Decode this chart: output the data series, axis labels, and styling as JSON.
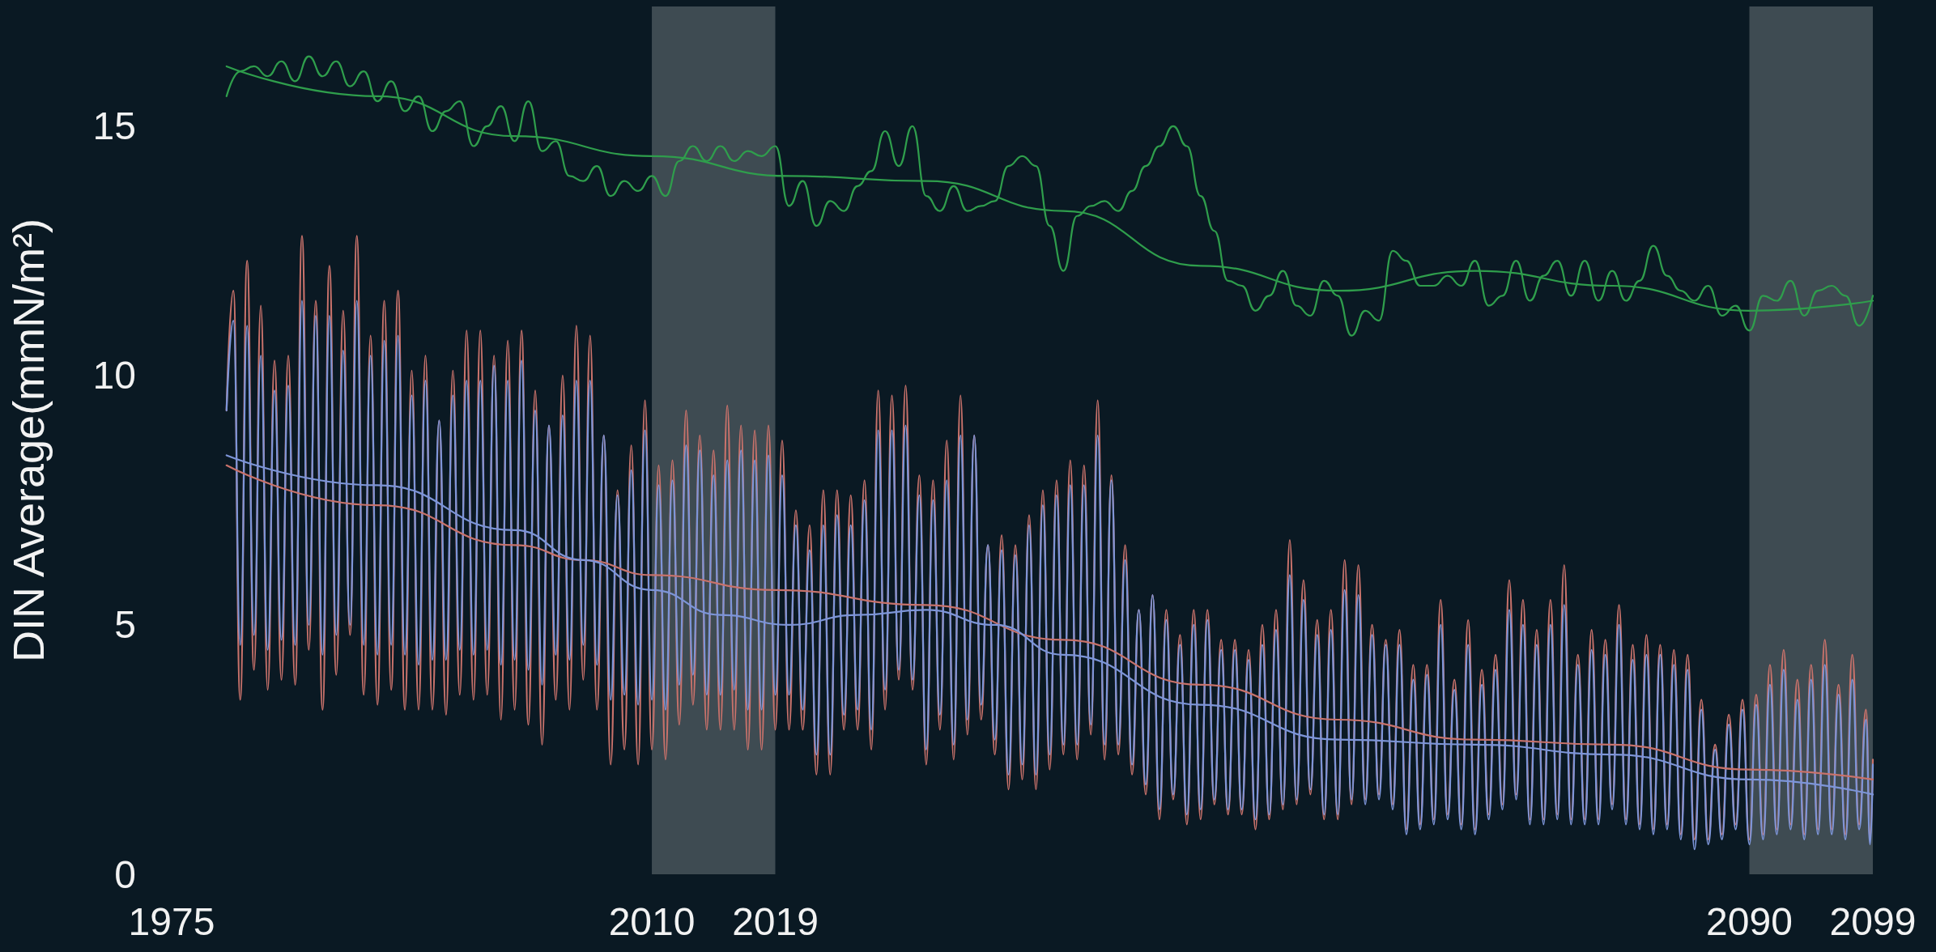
{
  "chart_data": {
    "type": "line",
    "ylabel": "DIN Average(mmN/m²)",
    "xlim": [
      1975,
      2099
    ],
    "xticks": [
      1975,
      2010,
      2019,
      2090,
      2099
    ],
    "ylim": [
      0,
      17.4
    ],
    "yticks": [
      0,
      5,
      10,
      15
    ],
    "marker": "none",
    "bands": [
      {
        "axis": "x",
        "from": 2010,
        "to": 2019,
        "color": "#3e4b52"
      },
      {
        "axis": "x",
        "from": 2090,
        "to": 2099,
        "color": "#3e4b52"
      }
    ],
    "x": [
      1979,
      1979.5,
      1980,
      1980.5,
      1981,
      1981.5,
      1982,
      1982.5,
      1983,
      1983.5,
      1984,
      1984.5,
      1985,
      1985.5,
      1986,
      1986.5,
      1987,
      1987.5,
      1988,
      1988.5,
      1989,
      1989.5,
      1990,
      1990.5,
      1991,
      1991.5,
      1992,
      1992.5,
      1993,
      1993.5,
      1994,
      1994.5,
      1995,
      1995.5,
      1996,
      1996.5,
      1997,
      1997.5,
      1998,
      1998.5,
      1999,
      1999.5,
      2000,
      2000.5,
      2001,
      2001.5,
      2002,
      2002.5,
      2003,
      2003.5,
      2004,
      2004.5,
      2005,
      2005.5,
      2006,
      2006.5,
      2007,
      2007.5,
      2008,
      2008.5,
      2009,
      2009.5,
      2010,
      2010.5,
      2011,
      2011.5,
      2012,
      2012.5,
      2013,
      2013.5,
      2014,
      2014.5,
      2015,
      2015.5,
      2016,
      2016.5,
      2017,
      2017.5,
      2018,
      2018.5,
      2019,
      2019.5,
      2020,
      2020.5,
      2021,
      2021.5,
      2022,
      2022.5,
      2023,
      2023.5,
      2024,
      2024.5,
      2025,
      2025.5,
      2026,
      2026.5,
      2027,
      2027.5,
      2028,
      2028.5,
      2029,
      2029.5,
      2030,
      2030.5,
      2031,
      2031.5,
      2032,
      2032.5,
      2033,
      2033.5,
      2034,
      2034.5,
      2035,
      2035.5,
      2036,
      2036.5,
      2037,
      2037.5,
      2038,
      2038.5,
      2039,
      2039.5,
      2040,
      2040.5,
      2041,
      2041.5,
      2042,
      2042.5,
      2043,
      2043.5,
      2044,
      2044.5,
      2045,
      2045.5,
      2046,
      2046.5,
      2047,
      2047.5,
      2048,
      2048.5,
      2049,
      2049.5,
      2050,
      2050.5,
      2051,
      2051.5,
      2052,
      2052.5,
      2053,
      2053.5,
      2054,
      2054.5,
      2055,
      2055.5,
      2056,
      2056.5,
      2057,
      2057.5,
      2058,
      2058.5,
      2059,
      2059.5,
      2060,
      2060.5,
      2061,
      2061.5,
      2062,
      2062.5,
      2063,
      2063.5,
      2064,
      2064.5,
      2065,
      2065.5,
      2066,
      2066.5,
      2067,
      2067.5,
      2068,
      2068.5,
      2069,
      2069.5,
      2070,
      2070.5,
      2071,
      2071.5,
      2072,
      2072.5,
      2073,
      2073.5,
      2074,
      2074.5,
      2075,
      2075.5,
      2076,
      2076.5,
      2077,
      2077.5,
      2078,
      2078.5,
      2079,
      2079.5,
      2080,
      2080.5,
      2081,
      2081.5,
      2082,
      2082.5,
      2083,
      2083.5,
      2084,
      2084.5,
      2085,
      2085.5,
      2086,
      2086.5,
      2087,
      2087.5,
      2088,
      2088.5,
      2089,
      2089.5,
      2090,
      2090.5,
      2091,
      2091.5,
      2092,
      2092.5,
      2093,
      2093.5,
      2094,
      2094.5,
      2095,
      2095.5,
      2096,
      2096.5,
      2097,
      2097.5,
      2098,
      2098.5,
      2098.8,
      2099
    ],
    "series": [
      {
        "color": "#c8726b",
        "values": [
          9.3,
          11.7,
          3.5,
          12.3,
          4.1,
          11.4,
          3.7,
          10.3,
          3.9,
          10.4,
          3.8,
          12.8,
          4.5,
          11.5,
          3.3,
          12.2,
          4.0,
          11.3,
          4.8,
          12.8,
          3.6,
          10.8,
          3.4,
          11.5,
          3.7,
          11.7,
          3.3,
          10.1,
          3.3,
          10.4,
          3.3,
          9.1,
          3.2,
          10.1,
          3.6,
          10.9,
          3.5,
          10.9,
          3.6,
          10.4,
          3.1,
          10.7,
          3.3,
          10.9,
          3.0,
          9.7,
          2.6,
          9.0,
          3.5,
          10.0,
          3.3,
          11.0,
          3.9,
          10.8,
          3.3,
          8.8,
          2.2,
          7.7,
          2.5,
          8.6,
          2.2,
          9.5,
          2.5,
          8.2,
          2.3,
          8.3,
          3.0,
          9.3,
          3.4,
          8.8,
          2.9,
          8.5,
          2.9,
          9.4,
          2.9,
          9.0,
          2.5,
          8.9,
          2.5,
          9.0,
          2.9,
          8.7,
          2.9,
          7.3,
          2.9,
          7.0,
          2.0,
          7.7,
          2.0,
          7.7,
          2.9,
          7.6,
          2.9,
          7.9,
          2.5,
          9.7,
          3.3,
          9.6,
          3.9,
          9.8,
          3.7,
          8.0,
          2.2,
          7.9,
          2.9,
          8.7,
          2.3,
          9.6,
          2.8,
          8.8,
          3.1,
          6.6,
          2.4,
          6.8,
          1.7,
          6.6,
          1.9,
          7.2,
          1.7,
          7.7,
          2.1,
          7.9,
          2.4,
          8.3,
          2.3,
          8.2,
          2.8,
          9.5,
          2.3,
          8.0,
          2.4,
          6.6,
          2.0,
          5.3,
          1.6,
          5.6,
          1.1,
          5.3,
          1.5,
          4.8,
          1.0,
          5.3,
          1.1,
          5.3,
          1.4,
          4.7,
          1.2,
          4.7,
          1.2,
          4.5,
          0.9,
          5.0,
          1.1,
          5.3,
          1.3,
          6.7,
          1.4,
          5.9,
          1.6,
          5.1,
          1.1,
          5.3,
          1.1,
          6.3,
          1.4,
          6.2,
          1.5,
          5.0,
          1.6,
          4.7,
          1.4,
          4.9,
          0.9,
          4.2,
          1.0,
          4.2,
          1.1,
          5.5,
          1.2,
          3.9,
          1.0,
          5.1,
          0.9,
          4.1,
          1.2,
          4.4,
          1.4,
          5.9,
          1.6,
          5.5,
          1.1,
          4.9,
          1.1,
          5.5,
          1.2,
          6.2,
          1.1,
          4.4,
          1.1,
          4.9,
          1.1,
          4.7,
          1.4,
          5.4,
          1.1,
          4.6,
          1.0,
          4.8,
          0.9,
          4.6,
          1.0,
          4.5,
          0.8,
          4.4,
          0.7,
          3.5,
          0.7,
          2.6,
          0.8,
          3.2,
          1.0,
          3.5,
          0.7,
          3.6,
          0.8,
          4.2,
          0.9,
          4.5,
          1.0,
          3.9,
          0.8,
          4.2,
          0.9,
          4.7,
          0.9,
          3.8,
          0.8,
          4.4,
          1.0,
          3.3,
          0.7,
          2.3
        ]
      },
      {
        "color": "#7d95d8",
        "values": [
          9.3,
          11.1,
          4.6,
          11.0,
          4.8,
          10.4,
          4.5,
          9.7,
          4.7,
          9.8,
          4.6,
          11.5,
          5.0,
          11.2,
          4.4,
          11.2,
          4.8,
          10.5,
          5.0,
          11.5,
          4.6,
          10.4,
          4.4,
          10.7,
          4.6,
          10.8,
          4.4,
          9.6,
          4.2,
          9.9,
          4.3,
          9.1,
          4.3,
          9.6,
          4.5,
          9.9,
          4.4,
          9.9,
          4.5,
          10.2,
          4.2,
          9.9,
          4.3,
          10.3,
          4.1,
          9.3,
          3.8,
          9.0,
          4.4,
          9.2,
          4.3,
          9.9,
          4.6,
          9.9,
          4.2,
          8.8,
          3.5,
          7.6,
          3.6,
          8.1,
          3.4,
          8.9,
          3.5,
          7.8,
          3.3,
          7.9,
          3.8,
          8.6,
          4.0,
          8.5,
          3.6,
          8.0,
          3.6,
          8.3,
          3.7,
          8.5,
          3.3,
          8.3,
          3.3,
          8.4,
          3.6,
          8.0,
          3.6,
          7.0,
          3.3,
          6.5,
          2.4,
          7.0,
          2.4,
          7.2,
          3.2,
          7.0,
          3.3,
          7.5,
          2.9,
          8.9,
          3.7,
          8.9,
          4.1,
          9.0,
          3.9,
          7.6,
          2.5,
          7.5,
          3.2,
          7.9,
          2.6,
          8.8,
          3.1,
          8.8,
          3.4,
          6.6,
          2.7,
          6.5,
          2.0,
          6.4,
          2.2,
          7.0,
          2.0,
          7.4,
          2.4,
          7.6,
          2.6,
          7.8,
          2.6,
          7.8,
          3.0,
          8.8,
          2.6,
          7.9,
          2.6,
          6.3,
          2.2,
          5.3,
          1.8,
          5.6,
          1.3,
          5.1,
          1.6,
          4.6,
          1.2,
          5.0,
          1.3,
          5.1,
          1.5,
          4.5,
          1.3,
          4.5,
          1.3,
          4.3,
          1.1,
          4.6,
          1.2,
          4.9,
          1.4,
          6.0,
          1.5,
          5.5,
          1.7,
          4.8,
          1.2,
          4.9,
          1.2,
          5.7,
          1.5,
          5.6,
          1.4,
          4.8,
          1.5,
          4.6,
          1.3,
          4.6,
          0.8,
          3.9,
          0.9,
          4.0,
          1.0,
          5.0,
          1.1,
          3.7,
          0.9,
          4.6,
          0.8,
          3.8,
          1.1,
          4.1,
          1.3,
          5.3,
          1.5,
          5.0,
          1.0,
          4.6,
          1.0,
          5.0,
          1.1,
          5.4,
          1.0,
          4.2,
          1.0,
          4.5,
          1.0,
          4.4,
          1.3,
          5.0,
          1.0,
          4.3,
          0.9,
          4.4,
          0.8,
          4.4,
          0.9,
          4.2,
          0.7,
          4.1,
          0.5,
          3.3,
          0.6,
          2.5,
          0.7,
          3.0,
          0.9,
          3.3,
          0.6,
          3.4,
          0.7,
          3.8,
          0.8,
          4.1,
          0.9,
          3.5,
          0.7,
          3.9,
          0.8,
          4.2,
          0.8,
          3.6,
          0.7,
          3.9,
          0.9,
          3.1,
          0.6,
          2.2
        ]
      },
      {
        "color": "#2f9e4c",
        "x": [
          1979,
          1980,
          1981,
          1982,
          1983,
          1984,
          1985,
          1986,
          1987,
          1988,
          1989,
          1990,
          1991,
          1992,
          1993,
          1994,
          1995,
          1996,
          1997,
          1998,
          1999,
          2000,
          2001,
          2002,
          2003,
          2004,
          2005,
          2006,
          2007,
          2008,
          2009,
          2010,
          2011,
          2012,
          2013,
          2014,
          2015,
          2016,
          2017,
          2018,
          2019,
          2020,
          2021,
          2022,
          2023,
          2024,
          2025,
          2026,
          2027,
          2028,
          2029,
          2030,
          2031,
          2032,
          2033,
          2034,
          2035,
          2036,
          2037,
          2038,
          2039,
          2040,
          2041,
          2042,
          2043,
          2044,
          2045,
          2046,
          2047,
          2048,
          2049,
          2050,
          2051,
          2052,
          2053,
          2054,
          2055,
          2056,
          2057,
          2058,
          2059,
          2060,
          2061,
          2062,
          2063,
          2064,
          2065,
          2066,
          2067,
          2068,
          2069,
          2070,
          2071,
          2072,
          2073,
          2074,
          2075,
          2076,
          2077,
          2078,
          2079,
          2080,
          2081,
          2082,
          2083,
          2084,
          2085,
          2086,
          2087,
          2088,
          2089,
          2090,
          2091,
          2092,
          2093,
          2094,
          2095,
          2096,
          2097,
          2098,
          2099
        ],
        "values": [
          15.6,
          16.1,
          16.2,
          16.0,
          16.3,
          15.9,
          16.4,
          16.0,
          16.3,
          15.8,
          16.1,
          15.5,
          15.9,
          15.3,
          15.6,
          14.9,
          15.3,
          15.5,
          14.6,
          15.0,
          15.4,
          14.7,
          15.5,
          14.5,
          14.7,
          14.0,
          13.9,
          14.2,
          13.6,
          13.9,
          13.7,
          14.0,
          13.6,
          14.3,
          14.6,
          14.3,
          14.6,
          14.3,
          14.5,
          14.4,
          14.6,
          13.4,
          13.9,
          13.0,
          13.5,
          13.3,
          13.8,
          14.1,
          14.9,
          14.2,
          15.0,
          13.6,
          13.3,
          13.8,
          13.3,
          13.4,
          13.5,
          14.2,
          14.4,
          14.2,
          13.0,
          12.1,
          13.2,
          13.4,
          13.5,
          13.3,
          13.7,
          14.2,
          14.6,
          15.0,
          14.6,
          13.6,
          12.9,
          11.9,
          11.8,
          11.3,
          11.6,
          12.1,
          11.4,
          11.2,
          11.9,
          11.6,
          10.8,
          11.3,
          11.1,
          12.5,
          12.3,
          11.8,
          11.8,
          12.0,
          11.8,
          12.3,
          11.4,
          11.6,
          12.3,
          11.5,
          12.0,
          12.3,
          11.6,
          12.3,
          11.5,
          12.1,
          11.5,
          11.9,
          12.6,
          12.0,
          11.7,
          11.5,
          11.8,
          11.2,
          11.4,
          10.9,
          11.6,
          11.5,
          11.9,
          11.2,
          11.7,
          11.8,
          11.6,
          11.0,
          11.6
        ]
      },
      {
        "color": "#c8726b",
        "x": [
          1979,
          1990,
          2000,
          2005,
          2010,
          2019,
          2030,
          2040,
          2050,
          2060,
          2070,
          2080,
          2090,
          2099
        ],
        "values": [
          8.2,
          7.4,
          6.6,
          6.3,
          6.0,
          5.7,
          5.4,
          4.7,
          3.8,
          3.1,
          2.7,
          2.6,
          2.1,
          1.9
        ]
      },
      {
        "color": "#7d95d8",
        "x": [
          1979,
          1990,
          2000,
          2005,
          2010,
          2015,
          2020,
          2025,
          2030,
          2035,
          2040,
          2050,
          2060,
          2070,
          2080,
          2090,
          2099
        ],
        "values": [
          8.4,
          7.8,
          6.9,
          6.3,
          5.7,
          5.2,
          5.0,
          5.2,
          5.3,
          5.0,
          4.4,
          3.4,
          2.7,
          2.6,
          2.4,
          1.9,
          1.6
        ]
      },
      {
        "color": "#2f9e4c",
        "x": [
          1979,
          1990,
          2000,
          2010,
          2020,
          2030,
          2040,
          2050,
          2060,
          2070,
          2080,
          2090,
          2099
        ],
        "values": [
          16.2,
          15.6,
          14.8,
          14.4,
          14.0,
          13.9,
          13.3,
          12.2,
          11.7,
          12.1,
          11.8,
          11.3,
          11.5
        ]
      }
    ]
  }
}
